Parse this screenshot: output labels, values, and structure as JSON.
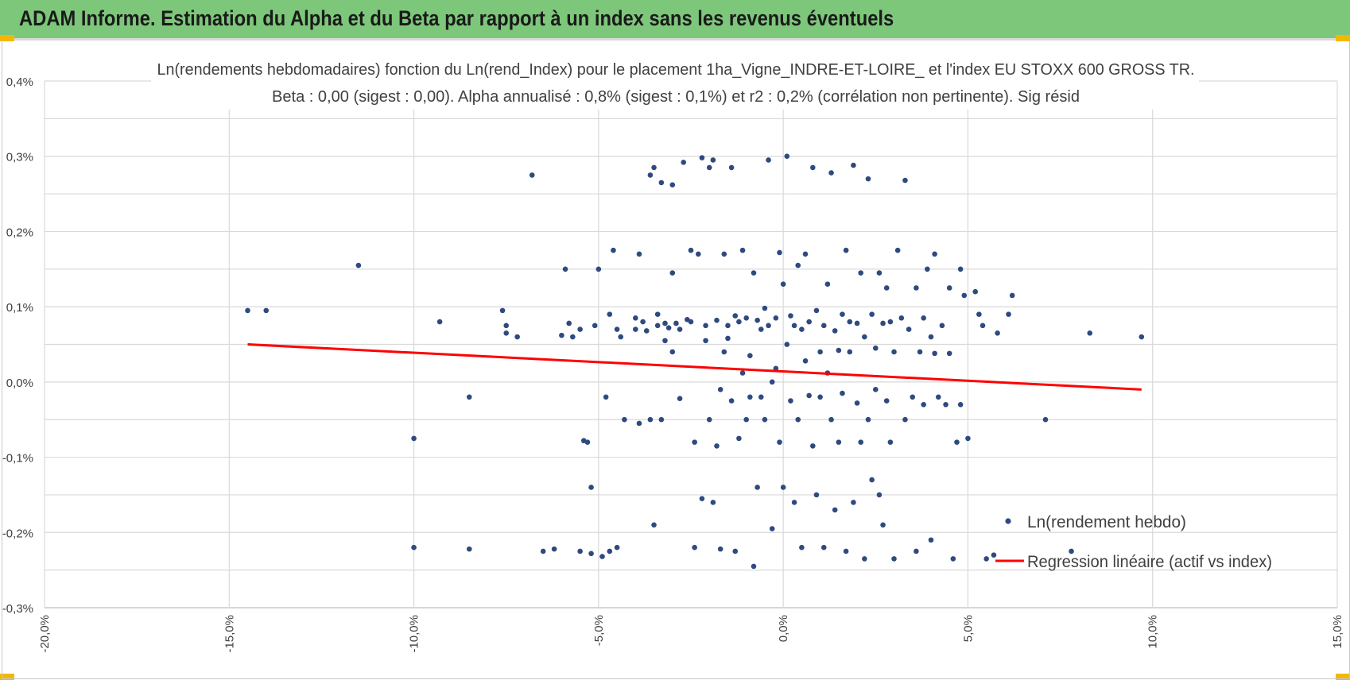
{
  "banner": {
    "title": "ADAM Informe. Estimation du Alpha et du Beta par rapport à un index sans les revenus éventuels",
    "color": "#7dc77a"
  },
  "chart_data": {
    "type": "scatter",
    "title": "Ln(rendements hebdomadaires) fonction du Ln(rend_Index) pour le placement 1ha_Vigne_INDRE-ET-LOIRE_ et l'index EU STOXX 600 GROSS TR.",
    "subtitle": "Beta : 0,00 (sigest : 0,00). Alpha annualisé : 0,8% (sigest : 0,1%) et r2 : 0,2% (corrélation non pertinente). Sig résid",
    "xlabel": "",
    "ylabel": "",
    "xlim": [
      -0.2,
      0.15
    ],
    "ylim": [
      -0.003,
      0.004
    ],
    "x_ticks": [
      -0.2,
      -0.15,
      -0.1,
      -0.05,
      0.0,
      0.05,
      0.1,
      0.15
    ],
    "x_tick_labels": [
      "-20,0%",
      "-15,0%",
      "-10,0%",
      "-5,0%",
      "0,0%",
      "5,0%",
      "10,0%",
      "15,0%"
    ],
    "y_ticks": [
      -0.003,
      -0.002,
      -0.001,
      0.0,
      0.001,
      0.002,
      0.003,
      0.004
    ],
    "y_tick_labels": [
      "-0,3%",
      "-0,2%",
      "-0,1%",
      "0,0%",
      "0,1%",
      "0,2%",
      "0,3%",
      "0,4%"
    ],
    "grid": true,
    "legend_position": "bottom-right",
    "series": [
      {
        "name": "Ln(rendement hebdo)",
        "type": "scatter",
        "color": "#2e4a7f",
        "points": [
          [
            -0.145,
            0.00095
          ],
          [
            -0.14,
            0.00095
          ],
          [
            -0.115,
            0.00155
          ],
          [
            -0.1,
            -0.00075
          ],
          [
            -0.1,
            -0.0022
          ],
          [
            -0.093,
            0.0008
          ],
          [
            -0.085,
            -0.0002
          ],
          [
            -0.085,
            -0.00222
          ],
          [
            -0.076,
            0.00095
          ],
          [
            -0.075,
            0.00075
          ],
          [
            -0.075,
            0.00065
          ],
          [
            -0.072,
            0.0006
          ],
          [
            -0.068,
            0.00275
          ],
          [
            -0.065,
            -0.00225
          ],
          [
            -0.062,
            -0.00222
          ],
          [
            -0.06,
            0.00062
          ],
          [
            -0.059,
            0.0015
          ],
          [
            -0.058,
            0.00078
          ],
          [
            -0.057,
            0.0006
          ],
          [
            -0.055,
            -0.00225
          ],
          [
            -0.055,
            0.0007
          ],
          [
            -0.054,
            -0.00078
          ],
          [
            -0.053,
            -0.0008
          ],
          [
            -0.052,
            -0.0014
          ],
          [
            -0.052,
            -0.00228
          ],
          [
            -0.051,
            0.00075
          ],
          [
            -0.049,
            -0.00232
          ],
          [
            -0.05,
            0.0015
          ],
          [
            -0.048,
            -0.0002
          ],
          [
            -0.047,
            0.0009
          ],
          [
            -0.045,
            -0.0022
          ],
          [
            -0.047,
            -0.00225
          ],
          [
            -0.046,
            0.00175
          ],
          [
            -0.045,
            0.0007
          ],
          [
            -0.044,
            0.0006
          ],
          [
            -0.043,
            -0.0005
          ],
          [
            -0.04,
            0.0007
          ],
          [
            -0.04,
            0.00085
          ],
          [
            -0.039,
            0.0017
          ],
          [
            -0.039,
            -0.00055
          ],
          [
            -0.038,
            0.0008
          ],
          [
            -0.037,
            0.00068
          ],
          [
            -0.036,
            -0.0005
          ],
          [
            -0.036,
            0.00275
          ],
          [
            -0.035,
            -0.0019
          ],
          [
            -0.035,
            0.00285
          ],
          [
            -0.034,
            0.00075
          ],
          [
            -0.034,
            0.0009
          ],
          [
            -0.033,
            0.00265
          ],
          [
            -0.033,
            -0.0005
          ],
          [
            -0.032,
            0.00055
          ],
          [
            -0.032,
            0.00078
          ],
          [
            -0.031,
            0.00072
          ],
          [
            -0.03,
            0.0004
          ],
          [
            -0.03,
            0.00262
          ],
          [
            -0.03,
            0.00145
          ],
          [
            -0.029,
            0.00078
          ],
          [
            -0.028,
            0.0007
          ],
          [
            -0.028,
            -0.00022
          ],
          [
            -0.027,
            0.00292
          ],
          [
            -0.026,
            0.00083
          ],
          [
            -0.025,
            0.0008
          ],
          [
            -0.025,
            0.00175
          ],
          [
            -0.024,
            -0.0022
          ],
          [
            -0.024,
            -0.0008
          ],
          [
            -0.023,
            0.0017
          ],
          [
            -0.022,
            0.00298
          ],
          [
            -0.022,
            -0.00155
          ],
          [
            -0.021,
            0.00075
          ],
          [
            -0.021,
            0.00055
          ],
          [
            -0.02,
            -0.0005
          ],
          [
            -0.02,
            0.00285
          ],
          [
            -0.019,
            0.00295
          ],
          [
            -0.019,
            -0.0016
          ],
          [
            -0.018,
            0.00082
          ],
          [
            -0.018,
            -0.00085
          ],
          [
            -0.017,
            -0.00222
          ],
          [
            -0.017,
            -0.0001
          ],
          [
            -0.016,
            0.0004
          ],
          [
            -0.016,
            0.0017
          ],
          [
            -0.015,
            0.00058
          ],
          [
            -0.015,
            0.00075
          ],
          [
            -0.014,
            -0.00025
          ],
          [
            -0.014,
            0.00285
          ],
          [
            -0.013,
            -0.00225
          ],
          [
            -0.013,
            0.00088
          ],
          [
            -0.012,
            0.0008
          ],
          [
            -0.012,
            -0.00075
          ],
          [
            -0.011,
            0.00175
          ],
          [
            -0.011,
            0.00012
          ],
          [
            -0.01,
            -0.0005
          ],
          [
            -0.01,
            0.00085
          ],
          [
            -0.009,
            0.00035
          ],
          [
            -0.009,
            -0.0002
          ],
          [
            -0.008,
            0.00145
          ],
          [
            -0.008,
            -0.00245
          ],
          [
            -0.007,
            0.00082
          ],
          [
            -0.007,
            -0.0014
          ],
          [
            -0.006,
            0.0007
          ],
          [
            -0.006,
            -0.0002
          ],
          [
            -0.005,
            0.00098
          ],
          [
            -0.005,
            -0.0005
          ],
          [
            -0.004,
            0.00075
          ],
          [
            -0.004,
            0.00295
          ],
          [
            -0.003,
            0.0
          ],
          [
            -0.003,
            -0.00195
          ],
          [
            -0.002,
            0.00085
          ],
          [
            -0.002,
            0.00018
          ],
          [
            -0.001,
            -0.0008
          ],
          [
            -0.001,
            0.00172
          ],
          [
            0.0,
            0.0013
          ],
          [
            0.0,
            -0.0014
          ],
          [
            0.001,
            0.0005
          ],
          [
            0.001,
            0.003
          ],
          [
            0.002,
            -0.00025
          ],
          [
            0.002,
            0.00088
          ],
          [
            0.003,
            0.00075
          ],
          [
            0.003,
            -0.0016
          ],
          [
            0.004,
            0.00155
          ],
          [
            0.004,
            -0.0005
          ],
          [
            0.005,
            0.0007
          ],
          [
            0.005,
            -0.0022
          ],
          [
            0.006,
            0.00028
          ],
          [
            0.006,
            0.0017
          ],
          [
            0.007,
            -0.00018
          ],
          [
            0.007,
            0.0008
          ],
          [
            0.008,
            0.00285
          ],
          [
            0.008,
            -0.00085
          ],
          [
            0.009,
            0.00095
          ],
          [
            0.009,
            -0.0015
          ],
          [
            0.01,
            0.0004
          ],
          [
            0.01,
            -0.0002
          ],
          [
            0.011,
            0.00075
          ],
          [
            0.011,
            -0.0022
          ],
          [
            0.012,
            0.0013
          ],
          [
            0.012,
            0.00012
          ],
          [
            0.013,
            -0.0005
          ],
          [
            0.013,
            0.00278
          ],
          [
            0.014,
            0.00068
          ],
          [
            0.014,
            -0.0017
          ],
          [
            0.015,
            0.00042
          ],
          [
            0.015,
            -0.0008
          ],
          [
            0.016,
            0.0009
          ],
          [
            0.016,
            -0.00015
          ],
          [
            0.017,
            0.00175
          ],
          [
            0.017,
            -0.00225
          ],
          [
            0.018,
            0.0008
          ],
          [
            0.018,
            0.0004
          ],
          [
            0.019,
            -0.0016
          ],
          [
            0.019,
            0.00288
          ],
          [
            0.02,
            -0.00028
          ],
          [
            0.02,
            0.00078
          ],
          [
            0.021,
            0.00145
          ],
          [
            0.021,
            -0.0008
          ],
          [
            0.022,
            0.0006
          ],
          [
            0.022,
            -0.00235
          ],
          [
            0.023,
            -0.0005
          ],
          [
            0.023,
            0.0027
          ],
          [
            0.024,
            0.0009
          ],
          [
            0.024,
            -0.0013
          ],
          [
            0.025,
            0.00045
          ],
          [
            0.025,
            -0.0001
          ],
          [
            0.026,
            0.00145
          ],
          [
            0.026,
            -0.0015
          ],
          [
            0.027,
            0.00078
          ],
          [
            0.027,
            -0.0019
          ],
          [
            0.028,
            -0.00025
          ],
          [
            0.028,
            0.00125
          ],
          [
            0.029,
            0.0008
          ],
          [
            0.029,
            -0.0008
          ],
          [
            0.03,
            0.0004
          ],
          [
            0.03,
            -0.00235
          ],
          [
            0.031,
            0.00175
          ],
          [
            0.032,
            0.00085
          ],
          [
            0.033,
            -0.0005
          ],
          [
            0.033,
            0.00268
          ],
          [
            0.034,
            0.0007
          ],
          [
            0.035,
            -0.0002
          ],
          [
            0.036,
            0.00125
          ],
          [
            0.036,
            -0.00225
          ],
          [
            0.037,
            0.0004
          ],
          [
            0.038,
            0.00085
          ],
          [
            0.038,
            -0.0003
          ],
          [
            0.039,
            0.0015
          ],
          [
            0.04,
            0.0006
          ],
          [
            0.04,
            -0.0021
          ],
          [
            0.041,
            0.0017
          ],
          [
            0.041,
            0.00038
          ],
          [
            0.042,
            -0.0002
          ],
          [
            0.043,
            0.00075
          ],
          [
            0.044,
            -0.0003
          ],
          [
            0.045,
            0.00125
          ],
          [
            0.045,
            0.00038
          ],
          [
            0.046,
            -0.00235
          ],
          [
            0.047,
            -0.0008
          ],
          [
            0.048,
            0.0015
          ],
          [
            0.048,
            -0.0003
          ],
          [
            0.049,
            0.00115
          ],
          [
            0.05,
            -0.00075
          ],
          [
            0.052,
            0.0012
          ],
          [
            0.053,
            0.0009
          ],
          [
            0.054,
            0.00075
          ],
          [
            0.055,
            -0.00235
          ],
          [
            0.057,
            -0.0023
          ],
          [
            0.058,
            0.00065
          ],
          [
            0.061,
            0.0009
          ],
          [
            0.062,
            0.00115
          ],
          [
            0.071,
            -0.0005
          ],
          [
            0.078,
            -0.00225
          ],
          [
            0.083,
            0.00065
          ],
          [
            0.097,
            0.0006
          ]
        ]
      },
      {
        "name": "Regression linéaire (actif vs index)",
        "type": "line",
        "color": "#ff0000",
        "points": [
          [
            -0.145,
            0.0005
          ],
          [
            0.097,
            -0.0001
          ]
        ]
      }
    ]
  }
}
